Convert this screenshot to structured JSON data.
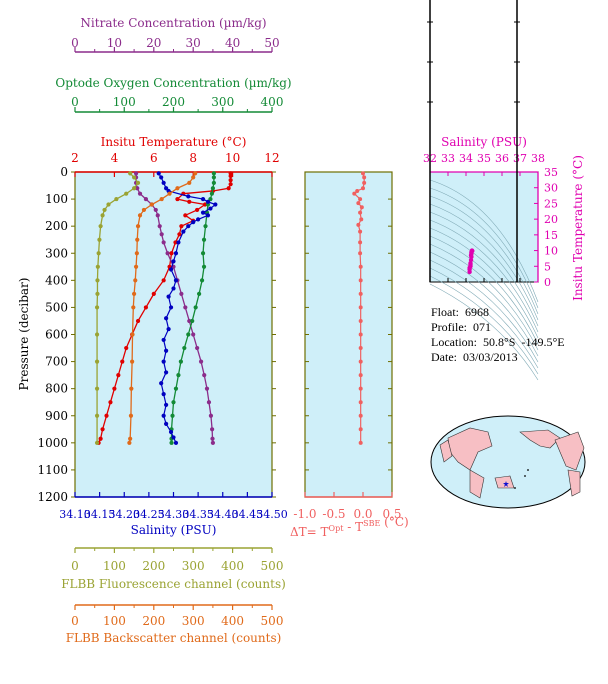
{
  "colors": {
    "nitrate": "#8B2C8B",
    "oxygen": "#138A36",
    "temperature": "#E00000",
    "salinity": "#0000C0",
    "fluorescence": "#9AA333",
    "backscatter": "#E06A1A",
    "delta_t": "#F06060",
    "ts": "#E000B0",
    "plot_bg": "#CFEFF9",
    "frame": "#6E6E00"
  },
  "info": {
    "float": "Float:  6968",
    "profile": "Profile:  071",
    "location": "Location:  50.8°S  -149.5°E",
    "date": "Date:  03/03/2013"
  },
  "footer": "",
  "chart_data": [
    {
      "type": "line",
      "title": "",
      "ylabel": "Pressure (decibar)",
      "ylim": [
        1200,
        0
      ],
      "yticks": [
        0,
        100,
        200,
        300,
        400,
        500,
        600,
        700,
        800,
        900,
        1000,
        1100,
        1200
      ],
      "grid": false,
      "axes": [
        {
          "key": "nitrate",
          "label": "Nitrate Concentration (µm/kg)",
          "range": [
            0,
            50
          ],
          "ticks": [
            0,
            10,
            20,
            30,
            40,
            50
          ]
        },
        {
          "key": "oxygen",
          "label": "Optode Oxygen Concentration (µm/kg)",
          "range": [
            0,
            400
          ],
          "ticks": [
            0,
            100,
            200,
            300,
            400
          ]
        },
        {
          "key": "temperature",
          "label": "Insitu Temperature (°C)",
          "range": [
            2,
            12
          ],
          "ticks": [
            2,
            4,
            6,
            8,
            10,
            12
          ]
        },
        {
          "key": "salinity",
          "label": "Salinity (PSU)",
          "range": [
            34.1,
            34.5
          ],
          "ticks": [
            "34.10",
            "34.15",
            "34.20",
            "34.25",
            "34.30",
            "34.35",
            "34.40",
            "34.45",
            "34.50"
          ]
        },
        {
          "key": "fluorescence",
          "label": "FLBB Fluorescence channel (counts)",
          "range": [
            0,
            500
          ],
          "ticks": [
            0,
            100,
            200,
            300,
            400,
            500
          ]
        },
        {
          "key": "backscatter",
          "label": "FLBB Backscatter channel (counts)",
          "range": [
            0,
            500
          ],
          "ticks": [
            0,
            100,
            200,
            300,
            400,
            500
          ]
        }
      ],
      "series": [
        {
          "key": "temperature",
          "points": [
            [
              9.9,
              5
            ],
            [
              9.9,
              15
            ],
            [
              9.9,
              30
            ],
            [
              9.9,
              45
            ],
            [
              9.8,
              60
            ],
            [
              9.0,
              70
            ],
            [
              7.5,
              80
            ],
            [
              7.2,
              100
            ],
            [
              7.8,
              110
            ],
            [
              8.6,
              120
            ],
            [
              8.2,
              140
            ],
            [
              7.6,
              160
            ],
            [
              8.0,
              180
            ],
            [
              7.4,
              200
            ],
            [
              7.3,
              230
            ],
            [
              7.1,
              260
            ],
            [
              6.9,
              300
            ],
            [
              6.8,
              350
            ],
            [
              6.5,
              400
            ],
            [
              6.0,
              450
            ],
            [
              5.6,
              500
            ],
            [
              5.2,
              550
            ],
            [
              4.9,
              600
            ],
            [
              4.6,
              650
            ],
            [
              4.4,
              700
            ],
            [
              4.2,
              750
            ],
            [
              4.0,
              800
            ],
            [
              3.8,
              850
            ],
            [
              3.6,
              900
            ],
            [
              3.4,
              950
            ],
            [
              3.3,
              985
            ],
            [
              3.2,
              1000
            ]
          ]
        },
        {
          "key": "nitrate",
          "points": [
            [
              15.5,
              5
            ],
            [
              15.5,
              20
            ],
            [
              15.5,
              40
            ],
            [
              15.8,
              60
            ],
            [
              16.5,
              80
            ],
            [
              18,
              100
            ],
            [
              19.5,
              120
            ],
            [
              20.5,
              140
            ],
            [
              21,
              160
            ],
            [
              21.5,
              200
            ],
            [
              22,
              230
            ],
            [
              22.5,
              260
            ],
            [
              23.5,
              300
            ],
            [
              25,
              350
            ],
            [
              26,
              400
            ],
            [
              27,
              450
            ],
            [
              28,
              500
            ],
            [
              29,
              550
            ],
            [
              30,
              600
            ],
            [
              31,
              650
            ],
            [
              32,
              700
            ],
            [
              32.8,
              750
            ],
            [
              33.5,
              800
            ],
            [
              34,
              850
            ],
            [
              34.5,
              900
            ],
            [
              34.8,
              950
            ],
            [
              34.9,
              985
            ],
            [
              35,
              1000
            ]
          ]
        },
        {
          "key": "oxygen",
          "points": [
            [
              282,
              5
            ],
            [
              282,
              20
            ],
            [
              282,
              40
            ],
            [
              280,
              60
            ],
            [
              278,
              80
            ],
            [
              275,
              100
            ],
            [
              270,
              120
            ],
            [
              268,
              150
            ],
            [
              265,
              200
            ],
            [
              262,
              250
            ],
            [
              260,
              300
            ],
            [
              262,
              350
            ],
            [
              258,
              400
            ],
            [
              252,
              450
            ],
            [
              245,
              500
            ],
            [
              238,
              550
            ],
            [
              230,
              600
            ],
            [
              222,
              650
            ],
            [
              215,
              700
            ],
            [
              210,
              750
            ],
            [
              205,
              800
            ],
            [
              200,
              850
            ],
            [
              198,
              900
            ],
            [
              196,
              950
            ],
            [
              196,
              985
            ],
            [
              196,
              1000
            ]
          ]
        },
        {
          "key": "salinity",
          "points": [
            [
              34.27,
              5
            ],
            [
              34.275,
              20
            ],
            [
              34.28,
              40
            ],
            [
              34.285,
              60
            ],
            [
              34.29,
              70
            ],
            [
              34.33,
              90
            ],
            [
              34.36,
              100
            ],
            [
              34.37,
              110
            ],
            [
              34.385,
              120
            ],
            [
              34.375,
              135
            ],
            [
              34.36,
              150
            ],
            [
              34.37,
              160
            ],
            [
              34.35,
              175
            ],
            [
              34.34,
              185
            ],
            [
              34.33,
              200
            ],
            [
              34.32,
              220
            ],
            [
              34.31,
              260
            ],
            [
              34.305,
              300
            ],
            [
              34.3,
              330
            ],
            [
              34.295,
              360
            ],
            [
              34.305,
              400
            ],
            [
              34.3,
              430
            ],
            [
              34.29,
              460
            ],
            [
              34.295,
              500
            ],
            [
              34.285,
              540
            ],
            [
              34.29,
              580
            ],
            [
              34.28,
              620
            ],
            [
              34.285,
              660
            ],
            [
              34.28,
              700
            ],
            [
              34.285,
              740
            ],
            [
              34.275,
              780
            ],
            [
              34.28,
              820
            ],
            [
              34.285,
              860
            ],
            [
              34.28,
              900
            ],
            [
              34.285,
              930
            ],
            [
              34.295,
              960
            ],
            [
              34.3,
              980
            ],
            [
              34.305,
              1000
            ]
          ]
        },
        {
          "key": "fluorescence",
          "points": [
            [
              140,
              5
            ],
            [
              150,
              20
            ],
            [
              160,
              40
            ],
            [
              150,
              60
            ],
            [
              130,
              80
            ],
            [
              105,
              100
            ],
            [
              85,
              120
            ],
            [
              75,
              140
            ],
            [
              70,
              160
            ],
            [
              65,
              200
            ],
            [
              62,
              250
            ],
            [
              60,
              300
            ],
            [
              58,
              350
            ],
            [
              57,
              400
            ],
            [
              57,
              450
            ],
            [
              56,
              500
            ],
            [
              56,
              600
            ],
            [
              56,
              700
            ],
            [
              56,
              800
            ],
            [
              56,
              900
            ],
            [
              56,
              1000
            ]
          ]
        },
        {
          "key": "backscatter",
          "points": [
            [
              305,
              5
            ],
            [
              300,
              20
            ],
            [
              290,
              40
            ],
            [
              260,
              60
            ],
            [
              240,
              80
            ],
            [
              220,
              100
            ],
            [
              195,
              120
            ],
            [
              175,
              140
            ],
            [
              165,
              160
            ],
            [
              160,
              200
            ],
            [
              158,
              250
            ],
            [
              157,
              300
            ],
            [
              155,
              350
            ],
            [
              153,
              400
            ],
            [
              150,
              450
            ],
            [
              148,
              500
            ],
            [
              146,
              600
            ],
            [
              145,
              700
            ],
            [
              143,
              800
            ],
            [
              142,
              900
            ],
            [
              140,
              985
            ],
            [
              138,
              1000
            ]
          ]
        }
      ]
    },
    {
      "type": "line",
      "title": "",
      "xlabel": "ΔT= T",
      "xlabel_sup1": "Opt",
      "xlabel_mid": " - T",
      "xlabel_sup2": "SBE",
      "xlabel_end": " (°C)",
      "xlim": [
        -1.0,
        0.5
      ],
      "xticks": [
        "-1.0",
        "-0.5",
        "0.0",
        "0.5"
      ],
      "ylim": [
        1200,
        0
      ],
      "series": [
        {
          "key": "delta_t",
          "points": [
            [
              0.0,
              5
            ],
            [
              0.02,
              20
            ],
            [
              0.02,
              40
            ],
            [
              0.0,
              60
            ],
            [
              -0.1,
              70
            ],
            [
              -0.15,
              80
            ],
            [
              -0.05,
              100
            ],
            [
              -0.08,
              115
            ],
            [
              -0.02,
              130
            ],
            [
              -0.05,
              150
            ],
            [
              -0.03,
              175
            ],
            [
              -0.08,
              195
            ],
            [
              -0.05,
              220
            ],
            [
              -0.05,
              260
            ],
            [
              -0.05,
              300
            ],
            [
              -0.04,
              350
            ],
            [
              -0.04,
              400
            ],
            [
              -0.04,
              450
            ],
            [
              -0.04,
              500
            ],
            [
              -0.04,
              550
            ],
            [
              -0.04,
              600
            ],
            [
              -0.04,
              650
            ],
            [
              -0.04,
              700
            ],
            [
              -0.04,
              750
            ],
            [
              -0.04,
              800
            ],
            [
              -0.04,
              850
            ],
            [
              -0.04,
              900
            ],
            [
              -0.04,
              950
            ],
            [
              -0.04,
              1000
            ]
          ]
        }
      ]
    },
    {
      "type": "scatter",
      "title": "",
      "xlabel": "Salinity (PSU)",
      "ylabel": "Insitu Temperature (°C)",
      "xlim": [
        32,
        38
      ],
      "xticks": [
        "32",
        "33",
        "34",
        "35",
        "36",
        "37",
        "38"
      ],
      "ylim": [
        0,
        35
      ],
      "yticks": [
        "0",
        "5",
        "10",
        "15",
        "20",
        "25",
        "30",
        "35"
      ],
      "series": [
        {
          "key": "ts",
          "points": [
            [
              34.2,
              3.2
            ],
            [
              34.2,
              4
            ],
            [
              34.25,
              5
            ],
            [
              34.25,
              6
            ],
            [
              34.28,
              7
            ],
            [
              34.3,
              8
            ],
            [
              34.3,
              9
            ],
            [
              34.33,
              10
            ],
            [
              34.3,
              9.5
            ],
            [
              34.28,
              8.5
            ],
            [
              34.25,
              5.5
            ],
            [
              34.2,
              4.5
            ],
            [
              34.35,
              9.9
            ]
          ]
        }
      ]
    }
  ]
}
